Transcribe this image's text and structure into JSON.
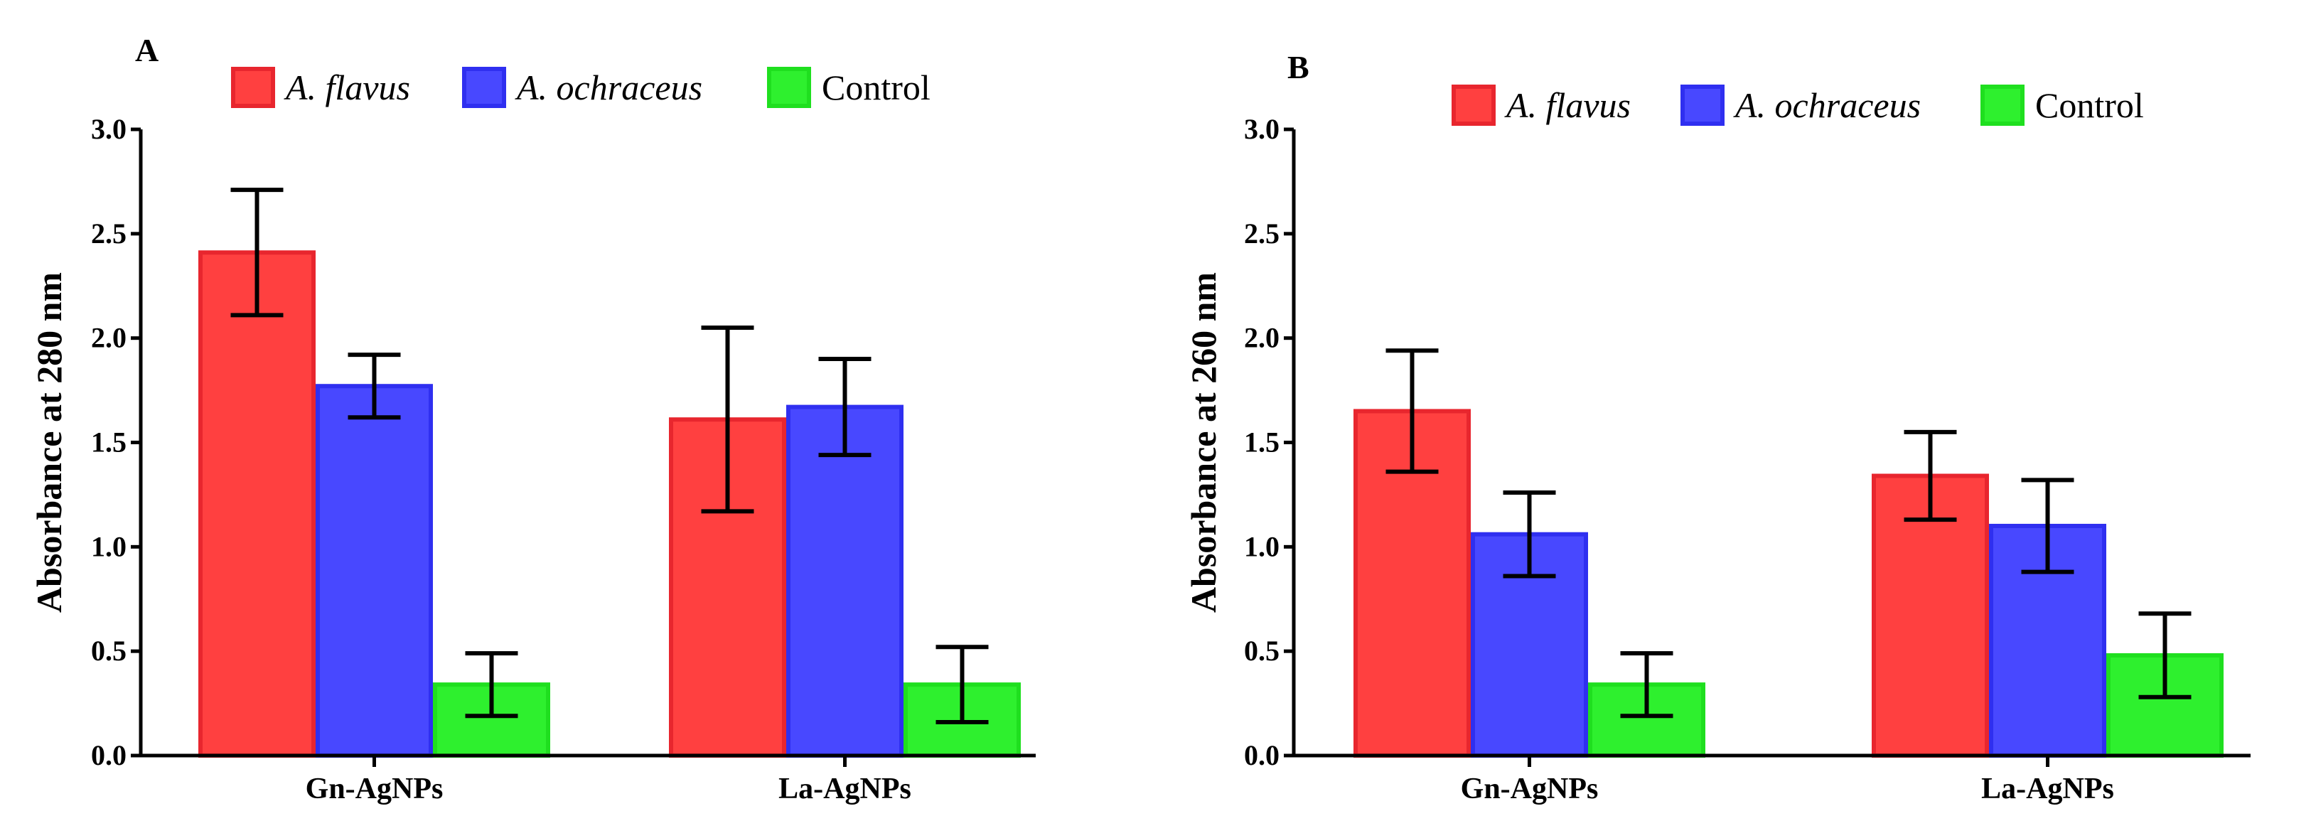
{
  "colors": {
    "flavus_fill": "#ff4040",
    "flavus_stroke": "#e8262e",
    "ochraceus_fill": "#4848ff",
    "ochraceus_stroke": "#2f2ff0",
    "control_fill": "#2ef02e",
    "control_stroke": "#1fdf1f",
    "axis": "#000000"
  },
  "chart_data": [
    {
      "panel": "A",
      "type": "bar",
      "ylabel": "Absorbance at 280 nm",
      "ylim": [
        0,
        3.0
      ],
      "yticks": [
        "0.0",
        "0.5",
        "1.0",
        "1.5",
        "2.0",
        "2.5",
        "3.0"
      ],
      "categories": [
        "Gn-AgNPs",
        "La-AgNPs"
      ],
      "legend": [
        "A. flavus",
        "A. ochraceus",
        "Control"
      ],
      "legend_position": "top",
      "series": [
        {
          "name": "A. flavus",
          "italic": true,
          "values": [
            2.41,
            1.61
          ],
          "errors": [
            0.3,
            0.44
          ]
        },
        {
          "name": "A. ochraceus",
          "italic": true,
          "values": [
            1.77,
            1.67
          ],
          "errors": [
            0.15,
            0.23
          ]
        },
        {
          "name": "Control",
          "italic": false,
          "values": [
            0.34,
            0.34
          ],
          "errors": [
            0.15,
            0.18
          ]
        }
      ]
    },
    {
      "panel": "B",
      "type": "bar",
      "ylabel": "Absorbance at 260 nm",
      "ylim": [
        0,
        3.0
      ],
      "yticks": [
        "0.0",
        "0.5",
        "1.0",
        "1.5",
        "2.0",
        "2.5",
        "3.0"
      ],
      "categories": [
        "Gn-AgNPs",
        "La-AgNPs"
      ],
      "legend": [
        "A. flavus",
        "A. ochraceus",
        "Control"
      ],
      "legend_position": "top",
      "series": [
        {
          "name": "A. flavus",
          "italic": true,
          "values": [
            1.65,
            1.34
          ],
          "errors": [
            0.29,
            0.21
          ]
        },
        {
          "name": "A. ochraceus",
          "italic": true,
          "values": [
            1.06,
            1.1
          ],
          "errors": [
            0.2,
            0.22
          ]
        },
        {
          "name": "Control",
          "italic": false,
          "values": [
            0.34,
            0.48
          ],
          "errors": [
            0.15,
            0.2
          ]
        }
      ]
    }
  ]
}
